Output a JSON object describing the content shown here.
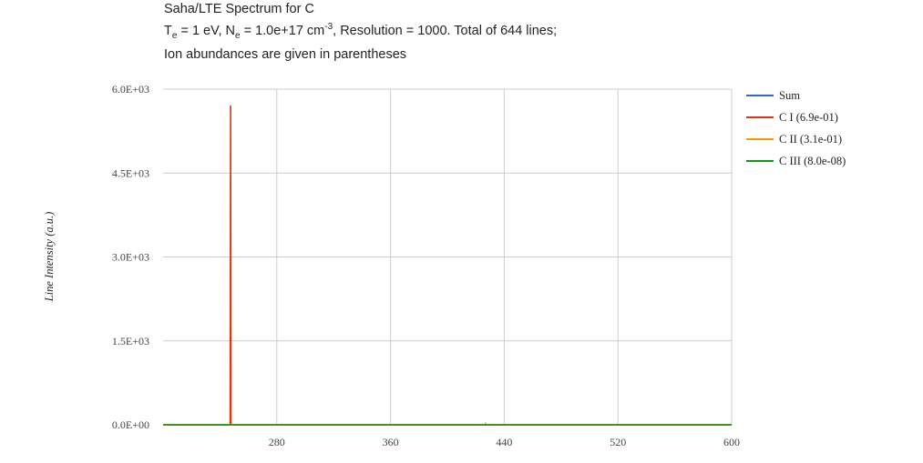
{
  "title": {
    "line1": "Saha/LTE Spectrum for C",
    "te_prefix": "T",
    "te_sub": "e",
    "te_value": " = 1 eV, N",
    "ne_sub": "e",
    "ne_value": " = 1.0e+17 cm",
    "ne_exp": "-3",
    "rest": ", Resolution = 1000. Total of 644 lines;",
    "line3": "Ion abundances are given in parentheses"
  },
  "chart_data": {
    "type": "line",
    "xlabel": "",
    "ylabel": "Line Intensity (a.u.)",
    "xlim": [
      200,
      600
    ],
    "ylim": [
      0,
      6000
    ],
    "x_ticks": [
      280,
      360,
      440,
      520,
      600
    ],
    "y_ticks": [
      0,
      1500,
      3000,
      4500,
      6000
    ],
    "x_tick_labels": [
      "280",
      "360",
      "440",
      "520",
      "600"
    ],
    "y_tick_labels": [
      "0.0E+00",
      "1.5E+03",
      "3.0E+03",
      "4.5E+03",
      "6.0E+03"
    ],
    "grid": true,
    "legend_position": "right",
    "series": [
      {
        "name": "Sum",
        "color": "#3366cc",
        "points": [
          [
            200,
            0
          ],
          [
            600,
            0
          ]
        ]
      },
      {
        "name": "C I (6.9e-01)",
        "color": "#dc3912",
        "points": [
          [
            200,
            0
          ],
          [
            247.2,
            0
          ],
          [
            247.5,
            5700
          ],
          [
            247.8,
            0
          ],
          [
            600,
            0
          ]
        ]
      },
      {
        "name": "C II (3.1e-01)",
        "color": "#ff9900",
        "points": [
          [
            200,
            0
          ],
          [
            283.7,
            0
          ],
          [
            283.8,
            10
          ],
          [
            283.9,
            0
          ],
          [
            426.7,
            0
          ],
          [
            426.8,
            30
          ],
          [
            426.9,
            0
          ],
          [
            600,
            0
          ]
        ]
      },
      {
        "name": "C III (8.0e-08)",
        "color": "#109618",
        "points": [
          [
            200,
            0
          ],
          [
            600,
            0
          ]
        ]
      }
    ]
  }
}
